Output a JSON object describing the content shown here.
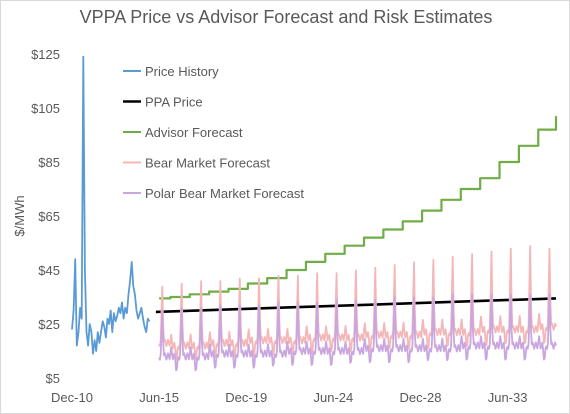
{
  "chart_data": {
    "type": "line",
    "title": "VPPA Price vs Advisor Forecast and Risk Estimates",
    "xlabel": "",
    "ylabel": "$/MWh",
    "ylim": [
      5,
      125
    ],
    "y_ticks": [
      5,
      25,
      45,
      65,
      85,
      105,
      125
    ],
    "y_tick_labels": [
      "$5",
      "$25",
      "$45",
      "$65",
      "$85",
      "$105",
      "$125"
    ],
    "x_range": [
      "2010-12",
      "2035-12"
    ],
    "x_ticks": [
      "2010-12",
      "2015-06",
      "2019-12",
      "2024-06",
      "2028-12",
      "2033-06"
    ],
    "x_tick_labels": [
      "Dec-10",
      "Jun-15",
      "Dec-19",
      "Jun-24",
      "Dec-28",
      "Jun-33"
    ],
    "grid": false,
    "legend_position": "top-left",
    "series": [
      {
        "name": "Price History",
        "color": "#5b9bd5",
        "points": [
          [
            "2010-12",
            23
          ],
          [
            "2011-01",
            30
          ],
          [
            "2011-02",
            49
          ],
          [
            "2011-03",
            17
          ],
          [
            "2011-04",
            22
          ],
          [
            "2011-05",
            31
          ],
          [
            "2011-06",
            27
          ],
          [
            "2011-07",
            124
          ],
          [
            "2011-08",
            45
          ],
          [
            "2011-09",
            22
          ],
          [
            "2011-10",
            17
          ],
          [
            "2011-11",
            25
          ],
          [
            "2011-12",
            22
          ],
          [
            "2012-01",
            14
          ],
          [
            "2012-02",
            19
          ],
          [
            "2012-03",
            15
          ],
          [
            "2012-04",
            22
          ],
          [
            "2012-05",
            18
          ],
          [
            "2012-06",
            22
          ],
          [
            "2012-07",
            26
          ],
          [
            "2012-08",
            24
          ],
          [
            "2012-09",
            20
          ],
          [
            "2012-10",
            27
          ],
          [
            "2012-11",
            25
          ],
          [
            "2012-12",
            30
          ],
          [
            "2013-01",
            22
          ],
          [
            "2013-02",
            29
          ],
          [
            "2013-03",
            26
          ],
          [
            "2013-04",
            28
          ],
          [
            "2013-05",
            31
          ],
          [
            "2013-06",
            29
          ],
          [
            "2013-07",
            33
          ],
          [
            "2013-08",
            27
          ],
          [
            "2013-09",
            31
          ],
          [
            "2013-10",
            29
          ],
          [
            "2013-11",
            36
          ],
          [
            "2013-12",
            41
          ],
          [
            "2014-01",
            48
          ],
          [
            "2014-02",
            39
          ],
          [
            "2014-03",
            36
          ],
          [
            "2014-04",
            30
          ],
          [
            "2014-05",
            27
          ],
          [
            "2014-06",
            29
          ],
          [
            "2014-07",
            31
          ],
          [
            "2014-08",
            27
          ],
          [
            "2014-09",
            24
          ],
          [
            "2014-10",
            22
          ],
          [
            "2014-11",
            27
          ],
          [
            "2014-12",
            26
          ]
        ]
      },
      {
        "name": "PPA Price",
        "color": "#000000",
        "points": [
          [
            "2015-04",
            29.5
          ],
          [
            "2035-12",
            34.5
          ]
        ]
      },
      {
        "name": "Advisor Forecast",
        "color": "#70ad47",
        "points": [
          [
            "2015-06",
            34.5
          ],
          [
            "2016",
            35
          ],
          [
            "2017",
            36
          ],
          [
            "2018",
            37
          ],
          [
            "2019",
            38
          ],
          [
            "2020",
            40
          ],
          [
            "2021",
            42
          ],
          [
            "2022",
            45
          ],
          [
            "2023",
            48
          ],
          [
            "2024",
            51
          ],
          [
            "2025",
            54
          ],
          [
            "2026",
            57
          ],
          [
            "2027",
            60
          ],
          [
            "2028",
            63
          ],
          [
            "2029",
            67
          ],
          [
            "2030",
            71
          ],
          [
            "2031",
            75
          ],
          [
            "2032",
            79
          ],
          [
            "2033",
            85
          ],
          [
            "2034",
            91
          ],
          [
            "2035",
            97
          ],
          [
            "2035-12",
            102
          ]
        ]
      },
      {
        "name": "Bear Market Forecast",
        "color": "#f4b6b6",
        "seasonal": {
          "start": "2015-06",
          "end": "2035-12",
          "annual_base": [
            [
              "2015",
              18
            ],
            [
              "2016",
              17
            ],
            [
              "2017",
              17
            ],
            [
              "2018",
              18
            ],
            [
              "2019",
              18
            ],
            [
              "2020",
              19
            ],
            [
              "2021",
              19
            ],
            [
              "2022",
              19
            ],
            [
              "2023",
              20
            ],
            [
              "2024",
              20
            ],
            [
              "2025",
              20
            ],
            [
              "2026",
              21
            ],
            [
              "2027",
              21
            ],
            [
              "2028",
              21
            ],
            [
              "2029",
              22
            ],
            [
              "2030",
              22
            ],
            [
              "2031",
              22
            ],
            [
              "2032",
              23
            ],
            [
              "2033",
              23
            ],
            [
              "2034",
              23
            ],
            [
              "2035",
              24
            ]
          ],
          "annual_peak": [
            [
              "2015",
              39
            ],
            [
              "2016",
              40
            ],
            [
              "2017",
              41
            ],
            [
              "2018",
              41
            ],
            [
              "2019",
              42
            ],
            [
              "2020",
              42
            ],
            [
              "2021",
              43
            ],
            [
              "2022",
              43
            ],
            [
              "2023",
              44
            ],
            [
              "2024",
              44
            ],
            [
              "2025",
              45
            ],
            [
              "2026",
              46
            ],
            [
              "2027",
              47
            ],
            [
              "2028",
              48
            ],
            [
              "2029",
              49
            ],
            [
              "2030",
              50
            ],
            [
              "2031",
              51
            ],
            [
              "2032",
              52
            ],
            [
              "2033",
              53
            ],
            [
              "2034",
              54
            ],
            [
              "2035",
              53
            ]
          ],
          "annual_trough": [
            [
              "2015",
              11
            ],
            [
              "2016",
              12
            ],
            [
              "2017",
              12
            ],
            [
              "2018",
              13
            ],
            [
              "2019",
              13
            ],
            [
              "2020",
              13
            ],
            [
              "2021",
              14
            ],
            [
              "2022",
              14
            ],
            [
              "2023",
              14
            ],
            [
              "2024",
              15
            ],
            [
              "2025",
              15
            ],
            [
              "2026",
              15
            ],
            [
              "2027",
              16
            ],
            [
              "2028",
              16
            ],
            [
              "2029",
              16
            ],
            [
              "2030",
              17
            ],
            [
              "2031",
              17
            ],
            [
              "2032",
              17
            ],
            [
              "2033",
              18
            ],
            [
              "2034",
              18
            ],
            [
              "2035",
              18
            ]
          ]
        }
      },
      {
        "name": "Polar Bear Market Forecast",
        "color": "#c9a6e0",
        "seasonal": {
          "start": "2015-06",
          "end": "2035-12",
          "annual_base": [
            [
              "2015",
              13
            ],
            [
              "2016",
              13
            ],
            [
              "2017",
              13
            ],
            [
              "2018",
              14
            ],
            [
              "2019",
              14
            ],
            [
              "2020",
              14
            ],
            [
              "2021",
              14
            ],
            [
              "2022",
              15
            ],
            [
              "2023",
              15
            ],
            [
              "2024",
              15
            ],
            [
              "2025",
              15
            ],
            [
              "2026",
              16
            ],
            [
              "2027",
              16
            ],
            [
              "2028",
              16
            ],
            [
              "2029",
              16
            ],
            [
              "2030",
              16
            ],
            [
              "2031",
              17
            ],
            [
              "2032",
              17
            ],
            [
              "2033",
              17
            ],
            [
              "2034",
              17
            ],
            [
              "2035",
              17
            ]
          ],
          "annual_peak": [
            [
              "2015",
              30
            ],
            [
              "2016",
              31
            ],
            [
              "2017",
              31
            ],
            [
              "2018",
              32
            ],
            [
              "2019",
              32
            ],
            [
              "2020",
              32
            ],
            [
              "2021",
              33
            ],
            [
              "2022",
              33
            ],
            [
              "2023",
              33
            ],
            [
              "2024",
              34
            ],
            [
              "2025",
              34
            ],
            [
              "2026",
              34
            ],
            [
              "2027",
              35
            ],
            [
              "2028",
              35
            ],
            [
              "2029",
              35
            ],
            [
              "2030",
              36
            ],
            [
              "2031",
              36
            ],
            [
              "2032",
              36
            ],
            [
              "2033",
              36
            ],
            [
              "2034",
              36
            ],
            [
              "2035",
              36
            ]
          ],
          "annual_trough": [
            [
              "2015",
              7
            ],
            [
              "2016",
              8
            ],
            [
              "2017",
              8
            ],
            [
              "2018",
              9
            ],
            [
              "2019",
              9
            ],
            [
              "2020",
              9
            ],
            [
              "2021",
              10
            ],
            [
              "2022",
              10
            ],
            [
              "2023",
              10
            ],
            [
              "2024",
              10
            ],
            [
              "2025",
              11
            ],
            [
              "2026",
              11
            ],
            [
              "2027",
              11
            ],
            [
              "2028",
              11
            ],
            [
              "2029",
              12
            ],
            [
              "2030",
              12
            ],
            [
              "2031",
              12
            ],
            [
              "2032",
              12
            ],
            [
              "2033",
              12
            ],
            [
              "2034",
              12
            ],
            [
              "2035",
              12
            ]
          ]
        }
      }
    ]
  }
}
